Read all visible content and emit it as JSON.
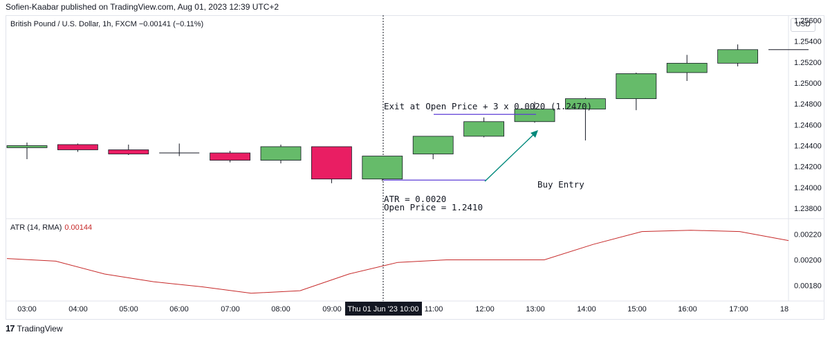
{
  "header": {
    "publisher_text": "Sofien-Kaabar published on TradingView.com, Aug 01, 2023 12:39 UTC+2",
    "symbol_info": "British Pound / U.S. Dollar, 1h, FXCM  −0.00141 (−0.11%)",
    "currency": "USD"
  },
  "footer": {
    "logo_mark": "17",
    "brand": "TradingView"
  },
  "colors": {
    "up": "#66bb6a",
    "down": "#e91e63",
    "atr_line": "#c62828",
    "purple": "#5b3bd6",
    "teal": "#00897b"
  },
  "chart_data": [
    {
      "type": "candlestick",
      "title": "British Pound / U.S. Dollar, 1h, FXCM",
      "ylim": [
        1.237,
        1.2565
      ],
      "y_ticks": [
        1.238,
        1.24,
        1.242,
        1.244,
        1.246,
        1.248,
        1.25,
        1.252,
        1.254,
        1.256
      ],
      "y_tick_labels": [
        "1.23800",
        "1.24000",
        "1.24200",
        "1.24400",
        "1.24600",
        "1.24800",
        "1.25000",
        "1.25200",
        "1.25400",
        "1.25600"
      ],
      "x": [
        "02:30",
        "03:30",
        "04:30",
        "05:30",
        "06:30",
        "07:30",
        "08:30",
        "09:30",
        "10:00",
        "11:00",
        "12:00",
        "13:00",
        "14:00",
        "15:00",
        "16:00",
        "17:00"
      ],
      "candles": [
        {
          "o": 1.2438,
          "h": 1.2443,
          "l": 1.2427,
          "c": 1.244
        },
        {
          "o": 1.2441,
          "h": 1.2442,
          "l": 1.2434,
          "c": 1.2436
        },
        {
          "o": 1.2436,
          "h": 1.2441,
          "l": 1.2431,
          "c": 1.2432
        },
        {
          "o": 1.2433,
          "h": 1.2442,
          "l": 1.243,
          "c": 1.2433
        },
        {
          "o": 1.2433,
          "h": 1.2435,
          "l": 1.2424,
          "c": 1.2426
        },
        {
          "o": 1.2426,
          "h": 1.2441,
          "l": 1.2423,
          "c": 1.2439
        },
        {
          "o": 1.2439,
          "h": 1.2439,
          "l": 1.2404,
          "c": 1.2408
        },
        {
          "o": 1.2408,
          "h": 1.243,
          "l": 1.2406,
          "c": 1.243
        },
        {
          "o": 1.2432,
          "h": 1.2449,
          "l": 1.2427,
          "c": 1.2449
        },
        {
          "o": 1.2449,
          "h": 1.2467,
          "l": 1.2448,
          "c": 1.2463
        },
        {
          "o": 1.2463,
          "h": 1.2482,
          "l": 1.2462,
          "c": 1.2475
        },
        {
          "o": 1.2475,
          "h": 1.2486,
          "l": 1.2445,
          "c": 1.2485
        },
        {
          "o": 1.2485,
          "h": 1.251,
          "l": 1.2474,
          "c": 1.2509
        },
        {
          "o": 1.251,
          "h": 1.2527,
          "l": 1.2502,
          "c": 1.2519
        },
        {
          "o": 1.2519,
          "h": 1.2537,
          "l": 1.2516,
          "c": 1.2532
        },
        {
          "o": 1.2532,
          "h": 1.2532,
          "l": 1.2532,
          "c": 1.2532
        }
      ],
      "annotations": {
        "exit_text": "Exit at Open Price + 3 x 0.0020 (1.2470)",
        "buy_entry_text": "Buy Entry",
        "atr_text": "ATR = 0.0020",
        "open_price_text": "Open Price = 1.2410",
        "exit_level": 1.247,
        "entry_level": 1.2407
      }
    },
    {
      "type": "line",
      "title": "ATR (14, RMA)",
      "current_value": "0.00144",
      "ylim": [
        0.00168,
        0.00232
      ],
      "y_ticks": [
        0.0018,
        0.002,
        0.0022
      ],
      "y_tick_labels": [
        "0.00180",
        "0.00200",
        "0.00220"
      ],
      "x": [
        "02:30",
        "03:00",
        "04:00",
        "05:00",
        "06:00",
        "07:00",
        "08:00",
        "09:00",
        "10:00",
        "11:00",
        "12:00",
        "13:00",
        "14:00",
        "15:00",
        "16:00",
        "17:00",
        "18:00"
      ],
      "values": [
        0.00201,
        0.00199,
        0.00189,
        0.00183,
        0.00179,
        0.00174,
        0.00176,
        0.00189,
        0.00198,
        0.002,
        0.002,
        0.002,
        0.00212,
        0.00222,
        0.00223,
        0.00222,
        0.00215
      ]
    }
  ],
  "x_axis": {
    "labels": [
      "03:00",
      "04:00",
      "05:00",
      "06:00",
      "07:00",
      "08:00",
      "09:00",
      "11:00",
      "12:00",
      "13:00",
      "14:00",
      "15:00",
      "16:00",
      "17:00",
      "18"
    ],
    "crosshair_label": "Thu 01 Jun '23   10:00"
  }
}
